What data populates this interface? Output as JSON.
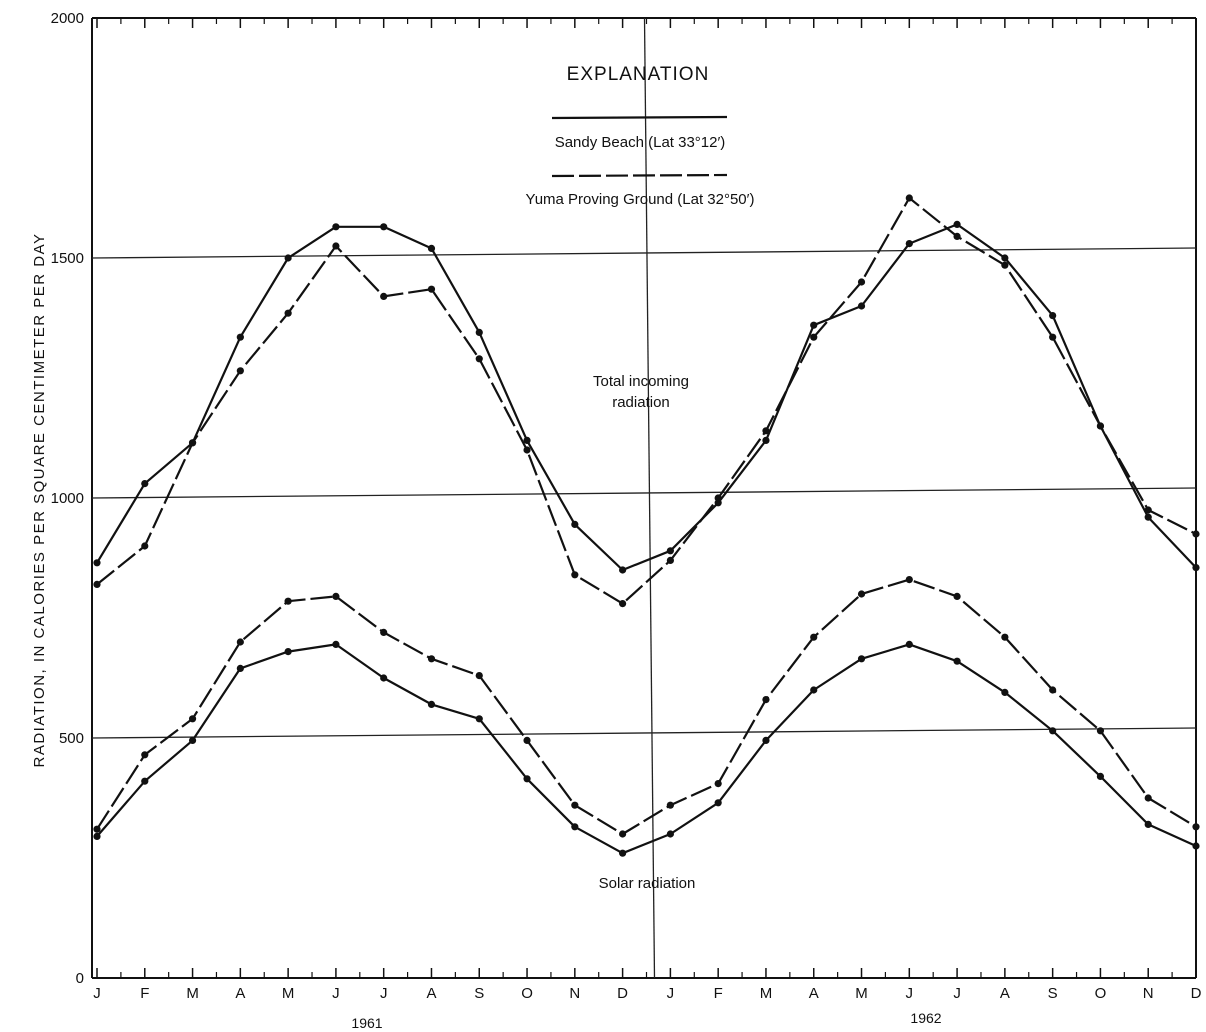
{
  "chart_data": {
    "type": "line",
    "title": "",
    "ylabel": "RADIATION, IN CALORIES PER SQUARE CENTIMETER PER DAY",
    "xlabel": "",
    "ylim": [
      0,
      2000
    ],
    "yticks": [
      "0",
      "500",
      "1000",
      "1500",
      "2000"
    ],
    "categories": [
      "J",
      "F",
      "M",
      "A",
      "M",
      "J",
      "J",
      "A",
      "S",
      "O",
      "N",
      "D",
      "J",
      "F",
      "M",
      "A",
      "M",
      "J",
      "J",
      "A",
      "S",
      "O",
      "N",
      "D"
    ],
    "year_labels": [
      "1961",
      "1962"
    ],
    "grid": "horizontal at 500, 1000, 1500; vertical divider between years",
    "legend": {
      "title": "EXPLANATION",
      "placement": "top-center",
      "entries": [
        "Sandy Beach (Lat 33°12′)",
        "Yuma Proving Ground (Lat 32°50′)"
      ]
    },
    "annotations": [
      "Total incoming radiation",
      "Solar radiation"
    ],
    "series": [
      {
        "name": "Sandy Beach (Lat 33°12′)",
        "group": "Total incoming radiation",
        "style": "solid",
        "values": [
          865,
          1030,
          1115,
          1335,
          1500,
          1565,
          1565,
          1520,
          1345,
          1120,
          945,
          850,
          890,
          990,
          1120,
          1360,
          1400,
          1530,
          1570,
          1500,
          1380,
          1150,
          960,
          855
        ]
      },
      {
        "name": "Yuma Proving Ground (Lat 32°50′)",
        "group": "Total incoming radiation",
        "style": "dashed",
        "values": [
          820,
          900,
          1115,
          1265,
          1385,
          1525,
          1420,
          1435,
          1290,
          1100,
          840,
          780,
          870,
          1000,
          1140,
          1335,
          1450,
          1625,
          1545,
          1485,
          1335,
          1150,
          975,
          925
        ]
      },
      {
        "name": "Sandy Beach (Lat 33°12′)",
        "group": "Solar radiation",
        "style": "solid",
        "values": [
          295,
          410,
          495,
          645,
          680,
          695,
          625,
          570,
          540,
          415,
          315,
          260,
          300,
          365,
          495,
          600,
          665,
          695,
          660,
          595,
          515,
          420,
          320,
          275
        ]
      },
      {
        "name": "Yuma Proving Ground (Lat 32°50′)",
        "group": "Solar radiation",
        "style": "dashed",
        "values": [
          310,
          465,
          540,
          700,
          785,
          795,
          720,
          665,
          630,
          495,
          360,
          300,
          360,
          405,
          580,
          710,
          800,
          830,
          795,
          710,
          600,
          515,
          375,
          315
        ]
      }
    ]
  }
}
